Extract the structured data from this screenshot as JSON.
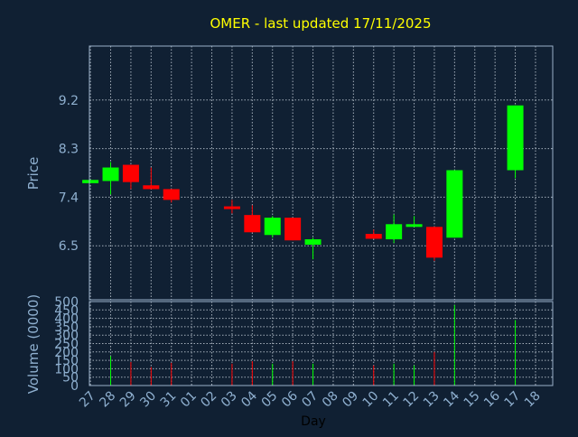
{
  "colors": {
    "background": "#102033",
    "title": "#ffff00",
    "axis_text": "#8fb0d0",
    "plot_border": "#9ab0c8",
    "grid": "#c8d2dc",
    "up": "#00ff00",
    "down": "#ff0000"
  },
  "chart_data": {
    "type": "candlestick",
    "title": "OMER - last updated 17/11/2025",
    "xlabel": "Day",
    "ylabel": "Price",
    "volume_ylabel": "Volume (0000)",
    "price_ylim": [
      5.5,
      10.2
    ],
    "price_ticks": [
      "6.5",
      "7.4",
      "8.3",
      "9.2"
    ],
    "volume_ylim": [
      0,
      500
    ],
    "volume_ticks": [
      "0",
      "50",
      "100",
      "150",
      "200",
      "250",
      "300",
      "350",
      "400",
      "450",
      "500"
    ],
    "grid": true,
    "x_labels": [
      "27",
      "28",
      "29",
      "30",
      "31",
      "01",
      "02",
      "03",
      "04",
      "05",
      "06",
      "07",
      "08",
      "09",
      "10",
      "11",
      "12",
      "13",
      "14",
      "15",
      "16",
      "17",
      "18"
    ],
    "candles": [
      {
        "day": "27",
        "open": 7.66,
        "close": 7.72,
        "high": 7.72,
        "low": 7.66,
        "volume": 0
      },
      {
        "day": "28",
        "open": 7.7,
        "close": 7.95,
        "high": 8.05,
        "low": 7.45,
        "volume": 175
      },
      {
        "day": "29",
        "open": 8.0,
        "close": 7.68,
        "high": 8.0,
        "low": 7.55,
        "volume": 140
      },
      {
        "day": "30",
        "open": 7.62,
        "close": 7.55,
        "high": 7.95,
        "low": 7.55,
        "volume": 110
      },
      {
        "day": "31",
        "open": 7.55,
        "close": 7.35,
        "high": 7.55,
        "low": 7.3,
        "volume": 135
      },
      {
        "day": "03",
        "open": 7.23,
        "close": 7.18,
        "high": 7.35,
        "low": 7.1,
        "volume": 130
      },
      {
        "day": "04",
        "open": 7.07,
        "close": 6.75,
        "high": 7.25,
        "low": 6.75,
        "volume": 145
      },
      {
        "day": "05",
        "open": 6.7,
        "close": 7.02,
        "high": 7.05,
        "low": 6.65,
        "volume": 130
      },
      {
        "day": "06",
        "open": 7.02,
        "close": 6.6,
        "high": 7.02,
        "low": 6.6,
        "volume": 145
      },
      {
        "day": "07",
        "open": 6.52,
        "close": 6.62,
        "high": 6.65,
        "low": 6.25,
        "volume": 130
      },
      {
        "day": "10",
        "open": 6.72,
        "close": 6.63,
        "high": 6.8,
        "low": 6.63,
        "volume": 120
      },
      {
        "day": "11",
        "open": 6.62,
        "close": 6.9,
        "high": 7.08,
        "low": 6.55,
        "volume": 130
      },
      {
        "day": "12",
        "open": 6.87,
        "close": 6.9,
        "high": 7.05,
        "low": 6.85,
        "volume": 120
      },
      {
        "day": "13",
        "open": 6.85,
        "close": 6.28,
        "high": 6.85,
        "low": 6.22,
        "volume": 200
      },
      {
        "day": "14",
        "open": 6.65,
        "close": 7.9,
        "high": 7.9,
        "low": 6.65,
        "volume": 480
      },
      {
        "day": "17",
        "open": 7.9,
        "close": 9.1,
        "high": 9.1,
        "low": 7.75,
        "volume": 390
      }
    ]
  }
}
